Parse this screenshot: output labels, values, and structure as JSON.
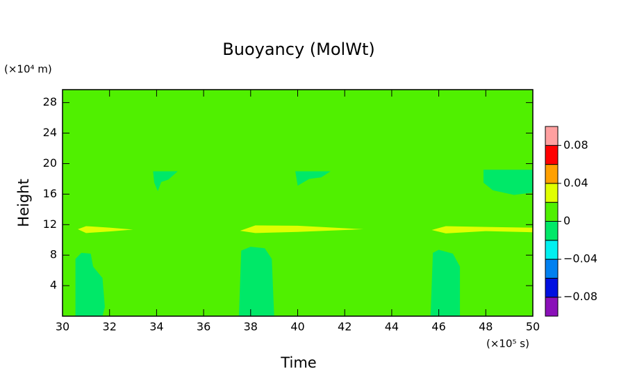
{
  "chart_data": {
    "type": "contour",
    "title": "Buoyancy (MolWt)",
    "x_label": "Time",
    "x_unit": "(×10⁵ s)",
    "y_label": "Height",
    "y_unit": "(×10⁴ m)",
    "xlim": [
      30,
      50
    ],
    "xticks": [
      30,
      32,
      34,
      36,
      38,
      40,
      42,
      44,
      46,
      48,
      50
    ],
    "ylim": [
      0,
      29.7
    ],
    "yticks": [
      4,
      8,
      12,
      16,
      20,
      24,
      28
    ],
    "base_level": 0,
    "colorbar": {
      "levels": [
        -0.1,
        -0.08,
        -0.06,
        -0.04,
        -0.02,
        0,
        0.02,
        0.04,
        0.06,
        0.08,
        0.1
      ],
      "colors": [
        "#8a10b8",
        "#0010e0",
        "#0080f0",
        "#00f0f0",
        "#00e868",
        "#50f000",
        "#e0ff00",
        "#ffa000",
        "#ff0000",
        "#ffa0a0"
      ],
      "ticks": [
        {
          "value": -0.08,
          "label": "−0.08"
        },
        {
          "value": -0.04,
          "label": "−0.04"
        },
        0,
        0.04,
        0.08
      ]
    },
    "regions": [
      {
        "level": -0.02,
        "x": [
          30.55,
          30.55,
          30.8,
          31.2,
          31.3,
          31.7,
          31.8,
          31.7
        ],
        "y": [
          0,
          7.5,
          8.3,
          8.2,
          6.5,
          5,
          1.2,
          0
        ]
      },
      {
        "level": -0.02,
        "x": [
          37.5,
          37.6,
          38.0,
          38.6,
          38.9,
          39.0
        ],
        "y": [
          0,
          8.6,
          9.1,
          8.9,
          7.5,
          0
        ]
      },
      {
        "level": -0.02,
        "x": [
          45.65,
          45.75,
          46.0,
          46.6,
          46.9,
          46.9
        ],
        "y": [
          0,
          8.3,
          8.7,
          8.2,
          6.5,
          0
        ]
      },
      {
        "level": -0.02,
        "x": [
          33.85,
          34.9,
          34.5,
          34.2,
          34.05,
          33.9
        ],
        "y": [
          19,
          19,
          17.9,
          17.6,
          16.4,
          17.5
        ]
      },
      {
        "level": -0.02,
        "x": [
          39.9,
          41.4,
          41.0,
          40.5,
          40.0
        ],
        "y": [
          19,
          19,
          18.2,
          18.0,
          17.1
        ]
      },
      {
        "level": -0.02,
        "x": [
          47.9,
          50,
          50,
          49.2,
          48.3,
          47.9
        ],
        "y": [
          19.2,
          19.2,
          16.2,
          15.9,
          16.5,
          17.5
        ]
      },
      {
        "level": 0.02,
        "x": [
          30.65,
          31,
          32,
          33,
          32,
          31
        ],
        "y": [
          11.4,
          11.8,
          11.6,
          11.35,
          11.1,
          10.9
        ]
      },
      {
        "level": 0.02,
        "x": [
          37.55,
          38.2,
          40,
          42.8,
          40,
          38.2
        ],
        "y": [
          11.2,
          11.9,
          11.85,
          11.4,
          11.05,
          10.9
        ]
      },
      {
        "level": 0.02,
        "x": [
          45.7,
          46.3,
          48,
          50,
          50,
          48,
          46.3
        ],
        "y": [
          11.3,
          11.8,
          11.7,
          11.6,
          11.0,
          11.15,
          10.85
        ]
      }
    ]
  }
}
